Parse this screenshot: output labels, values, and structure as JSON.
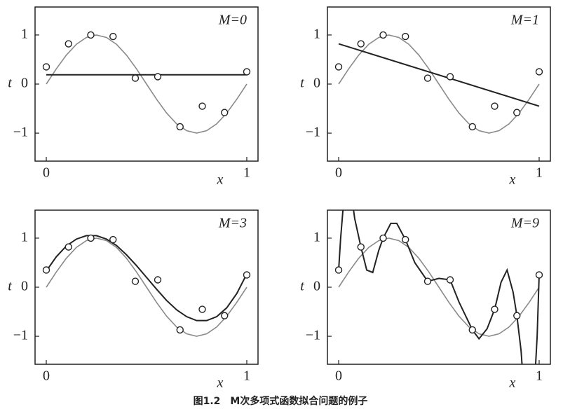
{
  "caption": "图1.2　M次多项式函数拟合问题的例子",
  "chart_data": [
    {
      "type": "line",
      "title": "M=0",
      "xlabel": "x",
      "ylabel": "t",
      "xlim": [
        -0.056,
        1.056
      ],
      "ylim": [
        -1.57,
        1.57
      ],
      "xticks": [
        0,
        1
      ],
      "yticks": [
        {
          "value": -1,
          "label": "−1"
        },
        0,
        1
      ],
      "points": {
        "x": [
          0,
          0.111,
          0.222,
          0.333,
          0.444,
          0.556,
          0.667,
          0.778,
          0.889,
          1
        ],
        "values": [
          0.35,
          0.82,
          1.0,
          0.97,
          0.12,
          0.15,
          -0.87,
          -0.45,
          -0.58,
          0.25
        ]
      },
      "series": [
        {
          "color": "#8a8a8a",
          "x": [
            0,
            0.05,
            0.1,
            0.15,
            0.2,
            0.25,
            0.3,
            0.35,
            0.4,
            0.45,
            0.5,
            0.55,
            0.6,
            0.65,
            0.7,
            0.75,
            0.8,
            0.85,
            0.9,
            0.95,
            1
          ],
          "values": [
            0,
            0.31,
            0.59,
            0.81,
            0.95,
            1,
            0.95,
            0.81,
            0.59,
            0.31,
            0,
            -0.31,
            -0.59,
            -0.81,
            -0.95,
            -1,
            -0.95,
            -0.81,
            -0.59,
            -0.31,
            0
          ]
        },
        {
          "color": "#222222",
          "x": [
            0,
            1
          ],
          "values": [
            0.19,
            0.19
          ]
        }
      ]
    },
    {
      "type": "line",
      "title": "M=1",
      "xlabel": "x",
      "ylabel": "t",
      "xlim": [
        -0.056,
        1.056
      ],
      "ylim": [
        -1.57,
        1.57
      ],
      "xticks": [
        0,
        1
      ],
      "yticks": [
        {
          "value": -1,
          "label": "−1"
        },
        0,
        1
      ],
      "points": {
        "x": [
          0,
          0.111,
          0.222,
          0.333,
          0.444,
          0.556,
          0.667,
          0.778,
          0.889,
          1
        ],
        "values": [
          0.35,
          0.82,
          1.0,
          0.97,
          0.12,
          0.15,
          -0.87,
          -0.45,
          -0.58,
          0.25
        ]
      },
      "series": [
        {
          "color": "#8a8a8a",
          "x": [
            0,
            0.05,
            0.1,
            0.15,
            0.2,
            0.25,
            0.3,
            0.35,
            0.4,
            0.45,
            0.5,
            0.55,
            0.6,
            0.65,
            0.7,
            0.75,
            0.8,
            0.85,
            0.9,
            0.95,
            1
          ],
          "values": [
            0,
            0.31,
            0.59,
            0.81,
            0.95,
            1,
            0.95,
            0.81,
            0.59,
            0.31,
            0,
            -0.31,
            -0.59,
            -0.81,
            -0.95,
            -1,
            -0.95,
            -0.81,
            -0.59,
            -0.31,
            0
          ]
        },
        {
          "color": "#222222",
          "x": [
            0,
            1
          ],
          "values": [
            0.82,
            -0.45
          ]
        }
      ]
    },
    {
      "type": "line",
      "title": "M=3",
      "xlabel": "x",
      "ylabel": "t",
      "xlim": [
        -0.056,
        1.056
      ],
      "ylim": [
        -1.57,
        1.57
      ],
      "xticks": [
        0,
        1
      ],
      "yticks": [
        {
          "value": -1,
          "label": "−1"
        },
        0,
        1
      ],
      "points": {
        "x": [
          0,
          0.111,
          0.222,
          0.333,
          0.444,
          0.556,
          0.667,
          0.778,
          0.889,
          1
        ],
        "values": [
          0.35,
          0.82,
          1.0,
          0.97,
          0.12,
          0.15,
          -0.87,
          -0.45,
          -0.58,
          0.25
        ]
      },
      "series": [
        {
          "color": "#8a8a8a",
          "x": [
            0,
            0.05,
            0.1,
            0.15,
            0.2,
            0.25,
            0.3,
            0.35,
            0.4,
            0.45,
            0.5,
            0.55,
            0.6,
            0.65,
            0.7,
            0.75,
            0.8,
            0.85,
            0.9,
            0.95,
            1
          ],
          "values": [
            0,
            0.31,
            0.59,
            0.81,
            0.95,
            1,
            0.95,
            0.81,
            0.59,
            0.31,
            0,
            -0.31,
            -0.59,
            -0.81,
            -0.95,
            -1,
            -0.95,
            -0.81,
            -0.59,
            -0.31,
            0
          ]
        },
        {
          "color": "#222222",
          "x": [
            0,
            0.05,
            0.1,
            0.15,
            0.2,
            0.25,
            0.3,
            0.35,
            0.4,
            0.45,
            0.5,
            0.55,
            0.6,
            0.65,
            0.7,
            0.75,
            0.8,
            0.85,
            0.9,
            0.95,
            1
          ],
          "values": [
            0.33,
            0.62,
            0.84,
            0.98,
            1.05,
            1.05,
            0.98,
            0.85,
            0.66,
            0.44,
            0.2,
            -0.04,
            -0.27,
            -0.46,
            -0.6,
            -0.68,
            -0.68,
            -0.6,
            -0.42,
            -0.13,
            0.27
          ]
        }
      ]
    },
    {
      "type": "line",
      "title": "M=9",
      "xlabel": "x",
      "ylabel": "t",
      "xlim": [
        -0.056,
        1.056
      ],
      "ylim": [
        -1.57,
        1.57
      ],
      "xticks": [
        0,
        1
      ],
      "yticks": [
        {
          "value": -1,
          "label": "−1"
        },
        0,
        1
      ],
      "points": {
        "x": [
          0,
          0.111,
          0.222,
          0.333,
          0.444,
          0.556,
          0.667,
          0.778,
          0.889,
          1
        ],
        "values": [
          0.35,
          0.82,
          1.0,
          0.97,
          0.12,
          0.15,
          -0.87,
          -0.45,
          -0.58,
          0.25
        ]
      },
      "series": [
        {
          "color": "#8a8a8a",
          "x": [
            0,
            0.05,
            0.1,
            0.15,
            0.2,
            0.25,
            0.3,
            0.35,
            0.4,
            0.45,
            0.5,
            0.55,
            0.6,
            0.65,
            0.7,
            0.75,
            0.8,
            0.85,
            0.9,
            0.95,
            1
          ],
          "values": [
            0,
            0.31,
            0.59,
            0.81,
            0.95,
            1,
            0.95,
            0.81,
            0.59,
            0.31,
            0,
            -0.31,
            -0.59,
            -0.81,
            -0.95,
            -1,
            -0.95,
            -0.81,
            -0.59,
            -0.31,
            0
          ]
        },
        {
          "color": "#222222",
          "x": [
            0,
            0.01,
            0.03,
            0.06,
            0.08,
            0.111,
            0.14,
            0.17,
            0.2,
            0.222,
            0.26,
            0.29,
            0.333,
            0.38,
            0.444,
            0.5,
            0.556,
            0.6,
            0.667,
            0.7,
            0.74,
            0.778,
            0.81,
            0.84,
            0.87,
            0.889,
            0.91,
            0.93,
            0.97,
            0.99,
            1
          ],
          "values": [
            0.35,
            1.0,
            2.0,
            2.0,
            1.4,
            0.82,
            0.35,
            0.3,
            0.75,
            1.0,
            1.3,
            1.3,
            0.97,
            0.5,
            0.12,
            0.18,
            0.15,
            -0.3,
            -0.87,
            -1.05,
            -0.85,
            -0.45,
            0.1,
            0.35,
            -0.1,
            -0.58,
            -1.3,
            -2.5,
            -2.5,
            -1.0,
            0.25
          ]
        }
      ]
    }
  ]
}
